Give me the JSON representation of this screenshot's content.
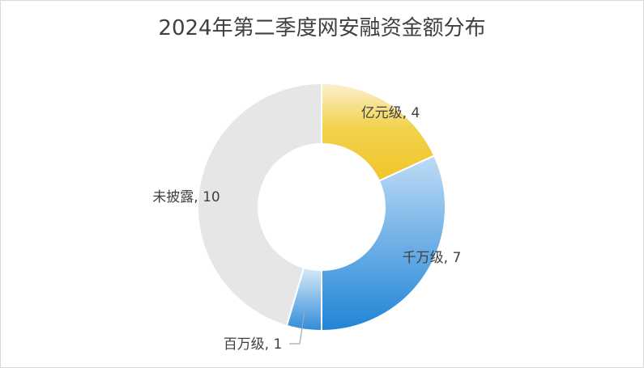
{
  "chart_data": {
    "type": "pie",
    "variant": "donut",
    "title": "2024年第二季度网安融资金额分布",
    "categories": [
      "亿元级",
      "千万级",
      "百万级",
      "未披露"
    ],
    "values": [
      4,
      7,
      1,
      10
    ],
    "colors": [
      "#f2d04a",
      "#4a9fe0",
      "#6fb3ea",
      "#e6e6e6"
    ],
    "labels": [
      "亿元级, 4",
      "千万级, 7",
      "百万级, 1",
      "未披露, 10"
    ],
    "legend": "none"
  }
}
